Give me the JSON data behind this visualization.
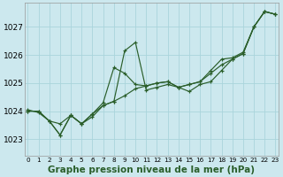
{
  "title": "Graphe pression niveau de la mer (hPa)",
  "background_color": "#cce8ee",
  "grid_color": "#aad4dc",
  "line_color": "#2a5e2a",
  "x_ticks": [
    0,
    1,
    2,
    3,
    4,
    5,
    6,
    7,
    8,
    9,
    10,
    11,
    12,
    13,
    14,
    15,
    16,
    17,
    18,
    19,
    20,
    21,
    22,
    23
  ],
  "y_ticks": [
    1023,
    1024,
    1025,
    1026,
    1027
  ],
  "ylim": [
    1022.4,
    1027.85
  ],
  "xlim": [
    -0.3,
    23.3
  ],
  "line1": [
    1024.0,
    1024.0,
    1023.65,
    1023.15,
    1023.85,
    1023.55,
    1023.8,
    1024.2,
    1024.35,
    1026.15,
    1026.45,
    1024.75,
    1024.85,
    1024.95,
    1024.85,
    1024.7,
    1024.95,
    1025.05,
    1025.45,
    1025.85,
    1026.05,
    1027.0,
    1027.55,
    1027.45
  ],
  "line2": [
    1024.0,
    1024.0,
    1023.65,
    1023.15,
    1023.85,
    1023.55,
    1023.9,
    1024.3,
    1025.55,
    1025.35,
    1024.95,
    1024.9,
    1025.0,
    1025.05,
    1024.85,
    1024.95,
    1025.05,
    1025.45,
    1025.85,
    1025.9,
    1026.1,
    1027.0,
    1027.55,
    1027.45
  ],
  "line3": [
    1024.05,
    1023.95,
    1023.65,
    1023.55,
    1023.85,
    1023.55,
    1023.9,
    1024.2,
    1024.35,
    1024.55,
    1024.8,
    1024.9,
    1025.0,
    1025.05,
    1024.85,
    1024.95,
    1025.05,
    1025.35,
    1025.65,
    1025.85,
    1026.05,
    1027.0,
    1027.55,
    1027.45
  ],
  "title_fontsize": 7.5,
  "ytick_fontsize": 6.5,
  "xtick_fontsize": 5.2
}
